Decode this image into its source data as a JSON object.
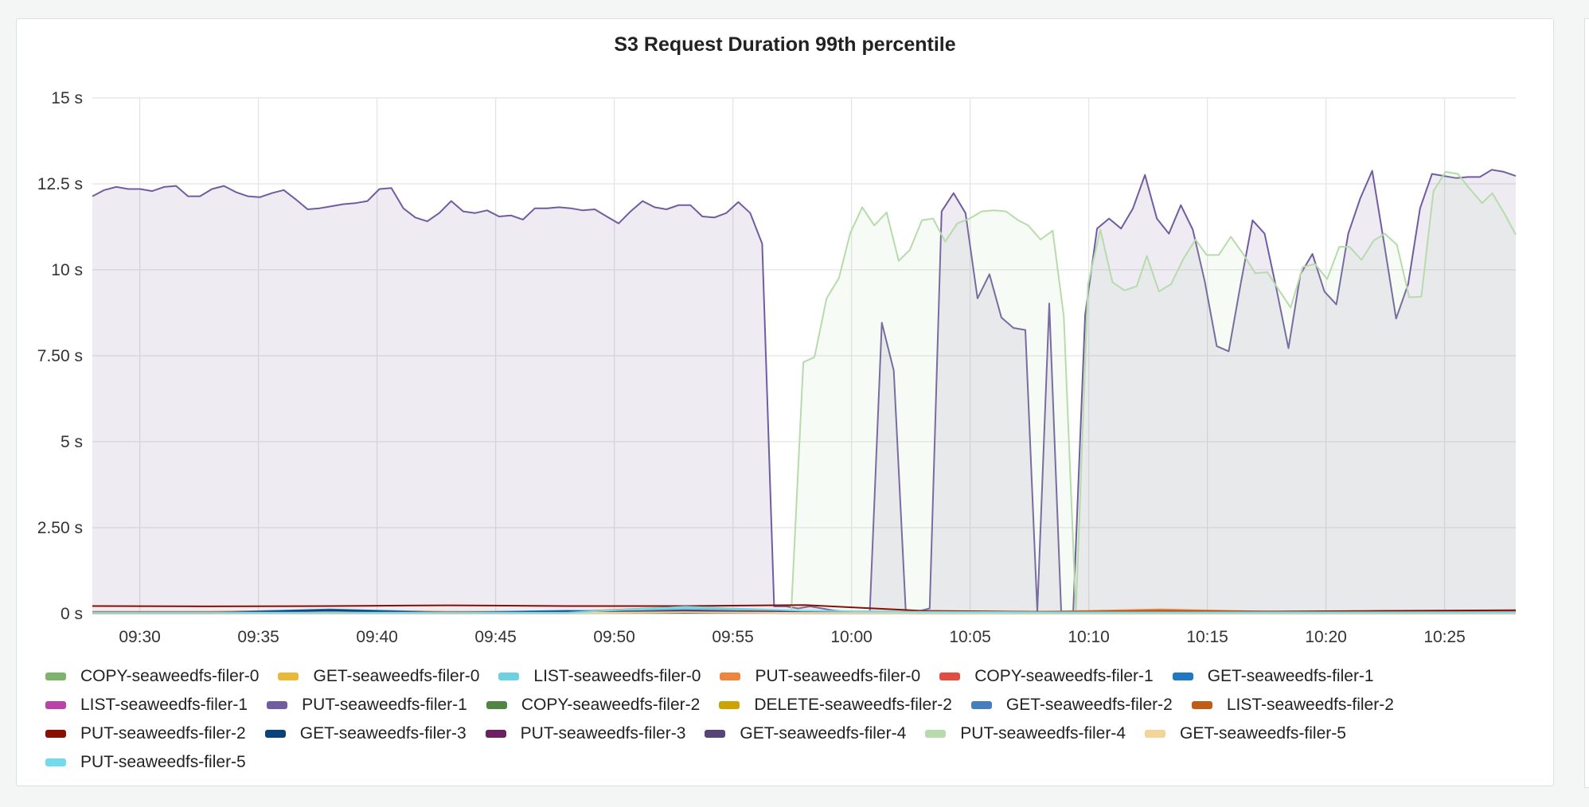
{
  "chart_data": {
    "type": "line",
    "title": "S3 Request Duration 99th percentile",
    "xlabel": "",
    "ylabel": "",
    "x_unit": "minutes since 09:28",
    "x_start": "09:28",
    "xlim": [
      0,
      60
    ],
    "ylim": [
      0,
      15
    ],
    "y_ticks": [
      {
        "v": 0,
        "label": "0 s"
      },
      {
        "v": 2.5,
        "label": "2.50 s"
      },
      {
        "v": 5,
        "label": "5 s"
      },
      {
        "v": 7.5,
        "label": "7.50 s"
      },
      {
        "v": 10,
        "label": "10 s"
      },
      {
        "v": 12.5,
        "label": "12.5 s"
      },
      {
        "v": 15,
        "label": "15 s"
      }
    ],
    "x_ticks": [
      {
        "v": 2,
        "label": "09:30"
      },
      {
        "v": 7,
        "label": "09:35"
      },
      {
        "v": 12,
        "label": "09:40"
      },
      {
        "v": 17,
        "label": "09:45"
      },
      {
        "v": 22,
        "label": "09:50"
      },
      {
        "v": 27,
        "label": "09:55"
      },
      {
        "v": 32,
        "label": "10:00"
      },
      {
        "v": 37,
        "label": "10:05"
      },
      {
        "v": 42,
        "label": "10:10"
      },
      {
        "v": 47,
        "label": "10:15"
      },
      {
        "v": 52,
        "label": "10:20"
      },
      {
        "v": 57,
        "label": "10:25"
      }
    ],
    "grid": true,
    "legend_placement": "bottom",
    "series": [
      {
        "name": "COPY-seaweedfs-filer-0",
        "color": "#7eb26d",
        "values": [
          0.02,
          0.02,
          0.02,
          0.02,
          0.02,
          0.02,
          0.03,
          0.02,
          0.02,
          0.02,
          0.02,
          0.02,
          0.02
        ]
      },
      {
        "name": "GET-seaweedfs-filer-0",
        "color": "#eab839",
        "values": [
          0.03,
          0.03,
          0.03,
          0.03,
          0.03,
          0.05,
          0.04,
          0.03,
          0.03,
          0.03,
          0.03,
          0.03,
          0.03
        ]
      },
      {
        "name": "LIST-seaweedfs-filer-0",
        "color": "#6ed0e0",
        "values": [
          0.04,
          0.04,
          0.04,
          0.04,
          0.04,
          0.15,
          0.05,
          0.06,
          0.04,
          0.04,
          0.05,
          0.04,
          0.04
        ]
      },
      {
        "name": "PUT-seaweedfs-filer-0",
        "color": "#ef843c",
        "values": [
          0.05,
          0.05,
          0.1,
          0.05,
          0.05,
          0.2,
          0.06,
          0.06,
          0.05,
          0.12,
          0.05,
          0.06,
          0.05
        ]
      },
      {
        "name": "COPY-seaweedfs-filer-1",
        "color": "#e24d42",
        "values": [
          0.02,
          0.02,
          0.02,
          0.02,
          0.02,
          0.03,
          0.02,
          0.02,
          0.02,
          0.02,
          0.02,
          0.02,
          0.02
        ]
      },
      {
        "name": "GET-seaweedfs-filer-1",
        "color": "#1f78c1",
        "values": [
          0.03,
          0.03,
          0.12,
          0.03,
          0.08,
          0.05,
          0.03,
          0.03,
          0.03,
          0.03,
          0.03,
          0.08,
          0.03
        ]
      },
      {
        "name": "LIST-seaweedfs-filer-1",
        "color": "#ba43a9",
        "values": [
          0.02,
          0.02,
          0.02,
          0.02,
          0.02,
          0.03,
          0.02,
          0.02,
          0.02,
          0.02,
          0.02,
          0.02,
          0.02
        ]
      },
      {
        "name": "PUT-seaweedfs-filer-1",
        "color": "#705da0",
        "fill": true,
        "values": [
          12.14,
          12.32,
          12.41,
          12.35,
          12.35,
          12.29,
          12.41,
          12.44,
          12.14,
          12.14,
          12.35,
          12.44,
          12.26,
          12.14,
          12.11,
          12.23,
          12.32,
          12.05,
          11.76,
          11.79,
          11.85,
          11.91,
          11.94,
          12.0,
          12.35,
          12.38,
          11.79,
          11.52,
          11.41,
          11.65,
          12.0,
          11.7,
          11.65,
          11.73,
          11.55,
          11.58,
          11.46,
          11.79,
          11.79,
          11.82,
          11.79,
          11.73,
          11.76,
          11.55,
          11.35,
          11.7,
          12.0,
          11.82,
          11.76,
          11.88,
          11.88,
          11.55,
          11.52,
          11.65,
          11.97,
          11.65,
          10.76,
          0.21,
          0.21,
          0.15,
          0.21,
          0.15,
          0.09,
          0.06,
          0.06,
          0.06,
          8.46,
          7.07,
          0.09,
          0.06,
          0.15,
          11.7,
          12.23,
          11.65,
          9.17,
          9.87,
          8.61,
          8.31,
          8.25,
          0.06,
          9.02,
          0.06,
          0.06,
          8.69,
          11.2,
          11.49,
          11.2,
          11.79,
          12.76,
          11.49,
          11.05,
          11.88,
          11.17,
          9.67,
          7.78,
          7.63,
          9.58,
          11.44,
          11.05,
          9.43,
          7.72,
          9.87,
          10.46,
          9.37,
          8.99,
          11.05,
          12.08,
          12.88,
          10.76,
          8.58,
          9.58,
          11.79,
          12.79,
          12.73,
          12.67,
          12.7,
          12.7,
          12.91,
          12.85,
          12.73
        ]
      },
      {
        "name": "COPY-seaweedfs-filer-2",
        "color": "#508642",
        "values": [
          0.02,
          0.02,
          0.02,
          0.02,
          0.02,
          0.02,
          0.02,
          0.02,
          0.02,
          0.02,
          0.02,
          0.02,
          0.02
        ]
      },
      {
        "name": "DELETE-seaweedfs-filer-2",
        "color": "#cca300",
        "values": [
          0.02,
          0.02,
          0.02,
          0.02,
          0.02,
          0.04,
          0.02,
          0.02,
          0.02,
          0.02,
          0.02,
          0.02,
          0.02
        ]
      },
      {
        "name": "GET-seaweedfs-filer-2",
        "color": "#447ebc",
        "values": [
          0.03,
          0.03,
          0.1,
          0.03,
          0.03,
          0.05,
          0.03,
          0.03,
          0.03,
          0.03,
          0.03,
          0.03,
          0.05
        ]
      },
      {
        "name": "LIST-seaweedfs-filer-2",
        "color": "#c15c17",
        "values": [
          0.04,
          0.04,
          0.04,
          0.04,
          0.04,
          0.06,
          0.04,
          0.04,
          0.04,
          0.08,
          0.04,
          0.04,
          0.04
        ]
      },
      {
        "name": "PUT-seaweedfs-filer-2",
        "color": "#890f02",
        "values": [
          0.22,
          0.21,
          0.22,
          0.24,
          0.22,
          0.22,
          0.25,
          0.08,
          0.05,
          0.05,
          0.06,
          0.08,
          0.1
        ]
      },
      {
        "name": "GET-seaweedfs-filer-3",
        "color": "#0a437c",
        "values": [
          0.02,
          0.02,
          0.1,
          0.02,
          0.06,
          0.03,
          0.02,
          0.02,
          0.02,
          0.02,
          0.02,
          0.02,
          0.02
        ]
      },
      {
        "name": "PUT-seaweedfs-filer-3",
        "color": "#6d1f62",
        "values": [
          0.03,
          0.03,
          0.03,
          0.03,
          0.03,
          0.08,
          0.05,
          0.03,
          0.03,
          0.03,
          0.03,
          0.03,
          0.03
        ]
      },
      {
        "name": "GET-seaweedfs-filer-4",
        "color": "#584477",
        "values": [
          0.02,
          0.02,
          0.02,
          0.02,
          0.02,
          0.1,
          0.03,
          0.02,
          0.02,
          0.02,
          0.02,
          0.02,
          0.02
        ]
      },
      {
        "name": "PUT-seaweedfs-filer-4",
        "color": "#b7dbab",
        "fill": true,
        "points": [
          [
            0,
            0.05
          ],
          [
            29.46,
            0.06
          ],
          [
            29.97,
            7.31
          ],
          [
            30.44,
            7.46
          ],
          [
            30.95,
            9.17
          ],
          [
            31.47,
            9.76
          ],
          [
            31.94,
            11.05
          ],
          [
            32.45,
            11.82
          ],
          [
            32.96,
            11.29
          ],
          [
            33.48,
            11.67
          ],
          [
            33.99,
            10.26
          ],
          [
            34.46,
            10.58
          ],
          [
            34.97,
            11.44
          ],
          [
            35.44,
            11.49
          ],
          [
            35.95,
            10.82
          ],
          [
            36.46,
            11.35
          ],
          [
            36.98,
            11.49
          ],
          [
            37.49,
            11.7
          ],
          [
            38.0,
            11.73
          ],
          [
            38.51,
            11.7
          ],
          [
            39.03,
            11.44
          ],
          [
            39.45,
            11.29
          ],
          [
            39.97,
            10.88
          ],
          [
            40.48,
            11.14
          ],
          [
            40.95,
            8.64
          ],
          [
            41.46,
            0.06
          ],
          [
            41.97,
            9.58
          ],
          [
            42.49,
            11.17
          ],
          [
            43.0,
            9.64
          ],
          [
            43.51,
            9.4
          ],
          [
            44.02,
            9.52
          ],
          [
            44.45,
            10.4
          ],
          [
            44.96,
            9.37
          ],
          [
            45.47,
            9.58
          ],
          [
            45.99,
            10.32
          ],
          [
            46.5,
            10.88
          ],
          [
            46.97,
            10.43
          ],
          [
            47.48,
            10.43
          ],
          [
            47.99,
            10.96
          ],
          [
            48.51,
            10.46
          ],
          [
            49.02,
            9.9
          ],
          [
            49.53,
            9.93
          ],
          [
            50.0,
            9.43
          ],
          [
            50.51,
            8.9
          ],
          [
            51.02,
            10.08
          ],
          [
            51.54,
            10.17
          ],
          [
            52.05,
            9.73
          ],
          [
            52.56,
            10.67
          ],
          [
            52.99,
            10.67
          ],
          [
            53.5,
            10.29
          ],
          [
            54.01,
            10.85
          ],
          [
            54.48,
            11.05
          ],
          [
            54.99,
            10.73
          ],
          [
            55.51,
            9.2
          ],
          [
            56.02,
            9.22
          ],
          [
            56.53,
            12.29
          ],
          [
            57.04,
            12.85
          ],
          [
            57.56,
            12.79
          ],
          [
            58.07,
            12.35
          ],
          [
            58.58,
            11.94
          ],
          [
            59.01,
            12.23
          ],
          [
            59.52,
            11.64
          ],
          [
            60.0,
            11.02
          ]
        ]
      },
      {
        "name": "GET-seaweedfs-filer-5",
        "color": "#f4d598",
        "values": [
          0.02,
          0.02,
          0.02,
          0.02,
          0.02,
          0.04,
          0.02,
          0.02,
          0.02,
          0.02,
          0.02,
          0.02,
          0.02
        ]
      },
      {
        "name": "PUT-seaweedfs-filer-5",
        "color": "#70dbed",
        "values": [
          0.03,
          0.03,
          0.03,
          0.03,
          0.03,
          0.2,
          0.08,
          0.05,
          0.04,
          0.04,
          0.04,
          0.04,
          0.04
        ]
      }
    ]
  }
}
